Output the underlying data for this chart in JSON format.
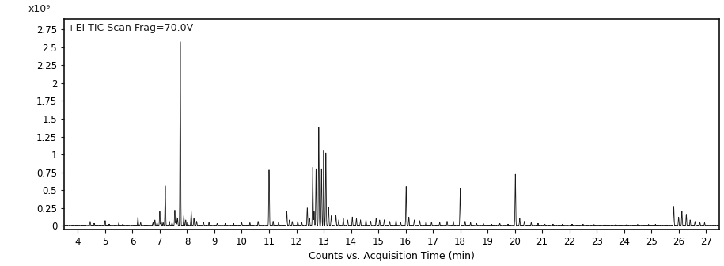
{
  "title": "+EI TIC Scan Frag=70.0V",
  "xlabel": "Counts vs. Acquisition Time (min)",
  "ylabel": "x10⁹",
  "xlim": [
    3.5,
    27.5
  ],
  "ylim": [
    -0.05,
    2.9
  ],
  "yticks": [
    0,
    0.25,
    0.5,
    0.75,
    1.0,
    1.25,
    1.5,
    1.75,
    2.0,
    2.25,
    2.5,
    2.75
  ],
  "ytick_labels": [
    "0",
    "0.25",
    "0.5",
    "0.75",
    "1",
    "1.25",
    "1.5",
    "1.75",
    "2",
    "2.25",
    "2.5",
    "2.75"
  ],
  "xticks": [
    4,
    5,
    6,
    7,
    8,
    9,
    10,
    11,
    12,
    13,
    14,
    15,
    16,
    17,
    18,
    19,
    20,
    21,
    22,
    23,
    24,
    25,
    26,
    27
  ],
  "line_color": "#1a1a1a",
  "background_color": "#ffffff",
  "peaks": [
    [
      4.45,
      0.06
    ],
    [
      4.6,
      0.03
    ],
    [
      5.0,
      0.07
    ],
    [
      5.15,
      0.02
    ],
    [
      5.5,
      0.04
    ],
    [
      5.65,
      0.02
    ],
    [
      6.2,
      0.12
    ],
    [
      6.3,
      0.04
    ],
    [
      6.75,
      0.04
    ],
    [
      6.82,
      0.08
    ],
    [
      6.9,
      0.04
    ],
    [
      7.0,
      0.2
    ],
    [
      7.05,
      0.06
    ],
    [
      7.12,
      0.04
    ],
    [
      7.2,
      0.56
    ],
    [
      7.35,
      0.06
    ],
    [
      7.45,
      0.04
    ],
    [
      7.55,
      0.22
    ],
    [
      7.6,
      0.12
    ],
    [
      7.65,
      0.1
    ],
    [
      7.75,
      2.58
    ],
    [
      7.88,
      0.14
    ],
    [
      7.95,
      0.08
    ],
    [
      8.02,
      0.05
    ],
    [
      8.15,
      0.2
    ],
    [
      8.25,
      0.1
    ],
    [
      8.35,
      0.06
    ],
    [
      8.6,
      0.05
    ],
    [
      8.8,
      0.04
    ],
    [
      9.1,
      0.03
    ],
    [
      9.4,
      0.03
    ],
    [
      9.7,
      0.03
    ],
    [
      10.0,
      0.04
    ],
    [
      10.3,
      0.04
    ],
    [
      10.6,
      0.06
    ],
    [
      11.0,
      0.78
    ],
    [
      11.15,
      0.06
    ],
    [
      11.35,
      0.05
    ],
    [
      11.65,
      0.2
    ],
    [
      11.75,
      0.08
    ],
    [
      11.85,
      0.06
    ],
    [
      12.05,
      0.06
    ],
    [
      12.2,
      0.04
    ],
    [
      12.4,
      0.25
    ],
    [
      12.48,
      0.1
    ],
    [
      12.6,
      0.82
    ],
    [
      12.65,
      0.2
    ],
    [
      12.72,
      0.8
    ],
    [
      12.82,
      1.38
    ],
    [
      12.92,
      0.8
    ],
    [
      13.0,
      1.05
    ],
    [
      13.08,
      1.02
    ],
    [
      13.18,
      0.26
    ],
    [
      13.28,
      0.14
    ],
    [
      13.45,
      0.14
    ],
    [
      13.55,
      0.08
    ],
    [
      13.72,
      0.1
    ],
    [
      13.88,
      0.08
    ],
    [
      14.05,
      0.12
    ],
    [
      14.2,
      0.1
    ],
    [
      14.35,
      0.08
    ],
    [
      14.55,
      0.08
    ],
    [
      14.72,
      0.06
    ],
    [
      14.92,
      0.1
    ],
    [
      15.05,
      0.08
    ],
    [
      15.22,
      0.08
    ],
    [
      15.42,
      0.06
    ],
    [
      15.65,
      0.08
    ],
    [
      15.82,
      0.04
    ],
    [
      16.02,
      0.55
    ],
    [
      16.12,
      0.12
    ],
    [
      16.32,
      0.08
    ],
    [
      16.52,
      0.07
    ],
    [
      16.75,
      0.06
    ],
    [
      16.95,
      0.05
    ],
    [
      17.25,
      0.04
    ],
    [
      17.52,
      0.06
    ],
    [
      17.75,
      0.06
    ],
    [
      18.0,
      0.52
    ],
    [
      18.18,
      0.06
    ],
    [
      18.38,
      0.04
    ],
    [
      18.6,
      0.03
    ],
    [
      18.85,
      0.03
    ],
    [
      19.15,
      0.02
    ],
    [
      19.45,
      0.03
    ],
    [
      19.75,
      0.02
    ],
    [
      20.02,
      0.72
    ],
    [
      20.18,
      0.1
    ],
    [
      20.35,
      0.06
    ],
    [
      20.6,
      0.04
    ],
    [
      20.85,
      0.03
    ],
    [
      21.1,
      0.02
    ],
    [
      21.4,
      0.02
    ],
    [
      21.75,
      0.02
    ],
    [
      22.1,
      0.02
    ],
    [
      22.5,
      0.02
    ],
    [
      22.9,
      0.015
    ],
    [
      23.3,
      0.015
    ],
    [
      23.7,
      0.015
    ],
    [
      24.1,
      0.015
    ],
    [
      24.5,
      0.015
    ],
    [
      24.9,
      0.015
    ],
    [
      25.15,
      0.015
    ],
    [
      25.82,
      0.27
    ],
    [
      26.0,
      0.12
    ],
    [
      26.12,
      0.2
    ],
    [
      26.28,
      0.16
    ],
    [
      26.42,
      0.08
    ],
    [
      26.6,
      0.06
    ],
    [
      26.78,
      0.04
    ],
    [
      26.95,
      0.04
    ]
  ],
  "noise_level": 0.004,
  "title_fontsize": 9,
  "axis_fontsize": 9,
  "tick_fontsize": 8.5
}
